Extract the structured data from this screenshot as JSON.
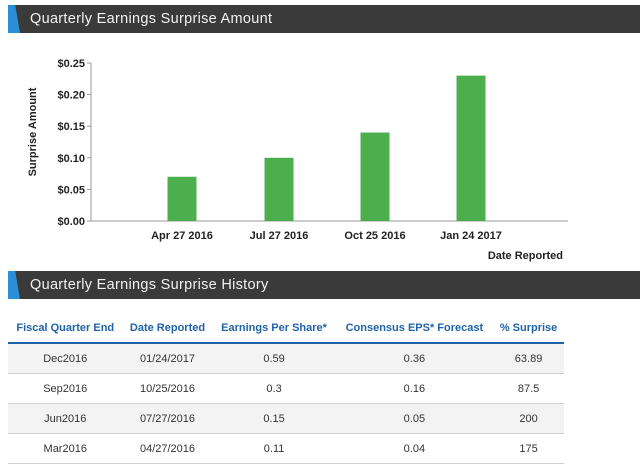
{
  "chart_section": {
    "title": "Quarterly Earnings Surprise Amount"
  },
  "history_section": {
    "title": "Quarterly Earnings Surprise History"
  },
  "chart_data": {
    "type": "bar",
    "title": "Quarterly Earnings Surprise Amount",
    "xlabel": "Date Reported",
    "ylabel": "Surprise Amount",
    "categories": [
      "Apr 27 2016",
      "Jul 27 2016",
      "Oct 25 2016",
      "Jan 24 2017"
    ],
    "values": [
      0.07,
      0.1,
      0.14,
      0.23
    ],
    "ylim": [
      0,
      0.25
    ],
    "yticks": [
      0,
      0.05,
      0.1,
      0.15,
      0.2,
      0.25
    ],
    "ytick_labels": [
      "$0.00",
      "$0.05",
      "$0.10",
      "$0.15",
      "$0.20",
      "$0.25"
    ],
    "bar_color": "#4cae4c",
    "grid": false,
    "legend": "none"
  },
  "table": {
    "headers": [
      "Fiscal Quarter End",
      "Date Reported",
      "Earnings Per Share*",
      "Consensus EPS* Forecast",
      "% Surprise"
    ],
    "rows": [
      [
        "Dec2016",
        "01/24/2017",
        "0.59",
        "0.36",
        "63.89"
      ],
      [
        "Sep2016",
        "10/25/2016",
        "0.3",
        "0.16",
        "87.5"
      ],
      [
        "Jun2016",
        "07/27/2016",
        "0.15",
        "0.05",
        "200"
      ],
      [
        "Mar2016",
        "04/27/2016",
        "0.11",
        "0.04",
        "175"
      ]
    ]
  },
  "colors": {
    "header_bar": "#3a3a3a",
    "accent": "#2b8fd6",
    "table_header_text": "#1f63a9"
  }
}
